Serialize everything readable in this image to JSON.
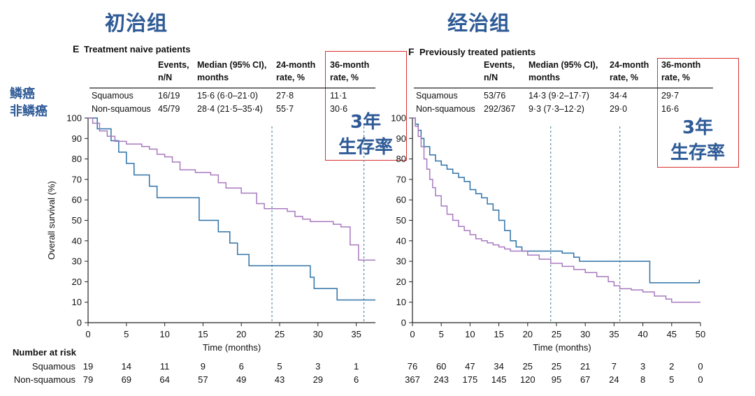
{
  "headings": {
    "left": "初治组",
    "right": "经治组"
  },
  "row_labels": {
    "squamous": "鳞癌",
    "non_squamous": "非鳞癌"
  },
  "callout": {
    "line1": "3年",
    "line2": "生存率"
  },
  "colors": {
    "squamous": "#2f72a8",
    "non_squamous": "#a87ac0",
    "heading": "#2e5a96",
    "highlight": "#d93030",
    "reference_line": "#5b8f9e"
  },
  "chart_data": [
    {
      "type": "line",
      "panel": "E",
      "title": "Treatment naive patients",
      "xlabel": "Time (months)",
      "ylabel": "Overall survival (%)",
      "xlim": [
        0,
        37.5
      ],
      "ylim": [
        0,
        100
      ],
      "xticks": [
        0,
        5,
        10,
        15,
        20,
        25,
        30,
        35
      ],
      "yticks": [
        0,
        10,
        20,
        30,
        40,
        50,
        60,
        70,
        80,
        90,
        100
      ],
      "reference_lines": [
        24,
        36
      ],
      "table": {
        "headers": [
          [
            "Events,",
            "n/N"
          ],
          [
            "Median (95% CI),",
            "months"
          ],
          [
            "24-month",
            "rate, %"
          ],
          [
            "36-month",
            "rate, %"
          ]
        ],
        "rows": [
          {
            "label": "Squamous",
            "cells": [
              "16/19",
              "15·6 (6·0–21·0)",
              "27·8",
              "11·1"
            ]
          },
          {
            "label": "Non-squamous",
            "cells": [
              "45/79",
              "28·4 (21·5–35·4)",
              "55·7",
              "30·6"
            ]
          }
        ]
      },
      "series": [
        {
          "name": "Squamous",
          "color": "#2f72a8",
          "steps": [
            [
              0,
              100
            ],
            [
              1.2,
              94.7
            ],
            [
              3,
              88.9
            ],
            [
              4,
              83.3
            ],
            [
              5,
              77.8
            ],
            [
              6,
              72.2
            ],
            [
              8,
              66.7
            ],
            [
              9,
              61.1
            ],
            [
              14,
              61.1
            ],
            [
              14.5,
              50
            ],
            [
              17,
              44.4
            ],
            [
              18.5,
              38.9
            ],
            [
              19.5,
              33.3
            ],
            [
              21,
              27.8
            ],
            [
              29,
              22.2
            ],
            [
              29.5,
              16.7
            ],
            [
              32.5,
              11.1
            ],
            [
              37.5,
              11.1
            ]
          ]
        },
        {
          "name": "Non-squamous",
          "color": "#a87ac0",
          "steps": [
            [
              0,
              100
            ],
            [
              0.6,
              97.5
            ],
            [
              1.5,
              93.7
            ],
            [
              2.5,
              91.1
            ],
            [
              3.5,
              88.6
            ],
            [
              5,
              87.3
            ],
            [
              7,
              86.1
            ],
            [
              8,
              84.8
            ],
            [
              9,
              82.3
            ],
            [
              10,
              81
            ],
            [
              11,
              78.5
            ],
            [
              12,
              74.7
            ],
            [
              14,
              73.4
            ],
            [
              16,
              72.2
            ],
            [
              17,
              68.4
            ],
            [
              18,
              65.8
            ],
            [
              20,
              63.3
            ],
            [
              22,
              58.2
            ],
            [
              23,
              55.7
            ],
            [
              26,
              54.4
            ],
            [
              27,
              51.9
            ],
            [
              28,
              50.6
            ],
            [
              29,
              49.4
            ],
            [
              32,
              48.1
            ],
            [
              33,
              46.8
            ],
            [
              34.2,
              38
            ],
            [
              35.3,
              30.6
            ],
            [
              37.5,
              30.6
            ]
          ]
        }
      ],
      "number_at_risk": {
        "label": "Number at risk",
        "rows": [
          {
            "label": "Squamous",
            "values": [
              "19",
              "14",
              "11",
              "9",
              "6",
              "5",
              "3",
              "1"
            ]
          },
          {
            "label": "Non-squamous",
            "values": [
              "79",
              "69",
              "64",
              "57",
              "49",
              "43",
              "29",
              "6"
            ]
          }
        ]
      }
    },
    {
      "type": "line",
      "panel": "F",
      "title": "Previously treated patients",
      "xlabel": "Time (months)",
      "ylabel": "",
      "xlim": [
        0,
        50
      ],
      "ylim": [
        0,
        100
      ],
      "xticks": [
        0,
        5,
        10,
        15,
        20,
        25,
        30,
        35,
        40,
        45,
        50
      ],
      "yticks": [
        0,
        10,
        20,
        30,
        40,
        50,
        60,
        70,
        80,
        90,
        100
      ],
      "reference_lines": [
        24,
        36
      ],
      "table": {
        "headers": [
          [
            "Events,",
            "n/N"
          ],
          [
            "Median (95% CI),",
            "months"
          ],
          [
            "24-month",
            "rate, %"
          ],
          [
            "36-month",
            "rate, %"
          ]
        ],
        "rows": [
          {
            "label": "Squamous",
            "cells": [
              "53/76",
              "14·3 (9·2–17·7)",
              "34·4",
              "29·7"
            ]
          },
          {
            "label": "Non-squamous",
            "cells": [
              "292/367",
              "9·3 (7·3–12·2)",
              "29·0",
              "16·6"
            ]
          }
        ]
      },
      "series": [
        {
          "name": "Squamous",
          "color": "#2f72a8",
          "steps": [
            [
              0,
              100
            ],
            [
              0.5,
              97
            ],
            [
              1,
              94
            ],
            [
              1.5,
              90
            ],
            [
              2,
              86
            ],
            [
              3,
              82
            ],
            [
              4,
              79
            ],
            [
              5,
              77
            ],
            [
              6,
              75
            ],
            [
              7,
              73
            ],
            [
              8,
              71
            ],
            [
              9,
              69
            ],
            [
              10,
              65
            ],
            [
              11,
              63
            ],
            [
              12,
              61
            ],
            [
              13,
              58
            ],
            [
              14,
              55
            ],
            [
              15,
              50
            ],
            [
              16,
              45
            ],
            [
              17,
              40
            ],
            [
              18,
              37
            ],
            [
              19,
              35
            ],
            [
              25,
              35
            ],
            [
              26,
              34
            ],
            [
              28,
              32
            ],
            [
              29,
              30
            ],
            [
              41,
              30
            ],
            [
              41.2,
              19.5
            ],
            [
              49.8,
              19.5
            ],
            [
              49.8,
              21
            ]
          ]
        },
        {
          "name": "Non-squamous",
          "color": "#a87ac0",
          "steps": [
            [
              0,
              100
            ],
            [
              0.5,
              96
            ],
            [
              1,
              91
            ],
            [
              1.5,
              86
            ],
            [
              2,
              80
            ],
            [
              2.5,
              75
            ],
            [
              3,
              70
            ],
            [
              3.5,
              66
            ],
            [
              4,
              62
            ],
            [
              5,
              57
            ],
            [
              6,
              53
            ],
            [
              7,
              50
            ],
            [
              8,
              47
            ],
            [
              9,
              45
            ],
            [
              10,
              43
            ],
            [
              11,
              41
            ],
            [
              12,
              40
            ],
            [
              13,
              39
            ],
            [
              14,
              38
            ],
            [
              15,
              37
            ],
            [
              16,
              36
            ],
            [
              17,
              35
            ],
            [
              18,
              35
            ],
            [
              20,
              33
            ],
            [
              22,
              31
            ],
            [
              24,
              29
            ],
            [
              26,
              27.5
            ],
            [
              28,
              26
            ],
            [
              30,
              24.5
            ],
            [
              32,
              22.5
            ],
            [
              34,
              20
            ],
            [
              35,
              18
            ],
            [
              36,
              16.6
            ],
            [
              38,
              16
            ],
            [
              40,
              15
            ],
            [
              42,
              13
            ],
            [
              44,
              11.5
            ],
            [
              45,
              10
            ],
            [
              50,
              10
            ]
          ]
        }
      ],
      "number_at_risk": {
        "label": "",
        "rows": [
          {
            "label": "",
            "values": [
              "76",
              "60",
              "47",
              "34",
              "25",
              "25",
              "21",
              "7",
              "3",
              "2",
              "0"
            ]
          },
          {
            "label": "",
            "values": [
              "367",
              "243",
              "175",
              "145",
              "120",
              "95",
              "67",
              "24",
              "8",
              "5",
              "0"
            ]
          }
        ]
      }
    }
  ]
}
